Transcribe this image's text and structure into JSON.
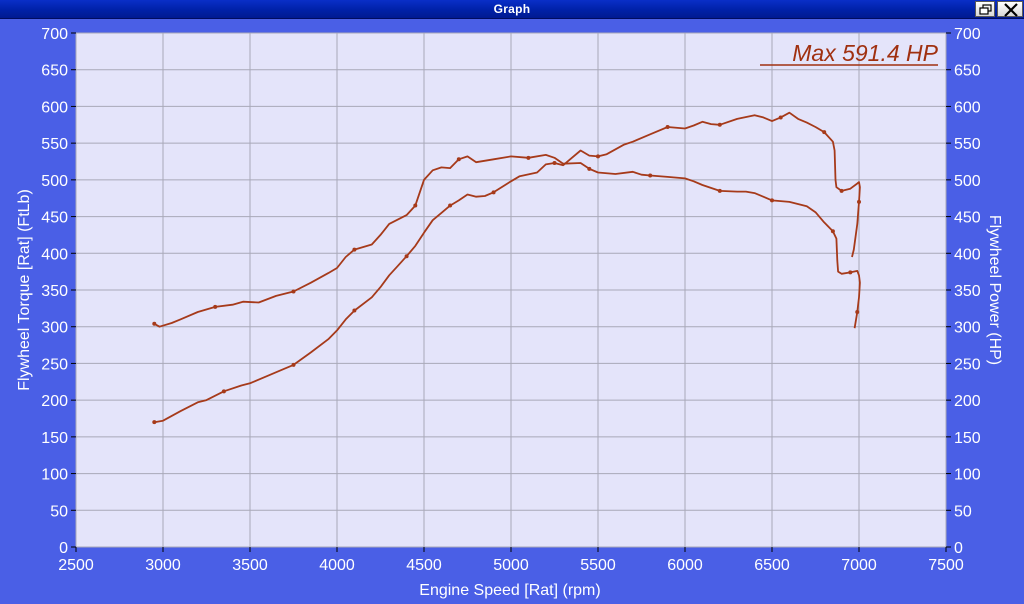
{
  "window": {
    "title": "Graph",
    "restore_icon": "restore-window-icon",
    "close_icon": "close-x-icon"
  },
  "chart_data": {
    "type": "line",
    "xlabel": "Engine Speed [Rat] (rpm)",
    "ylabel_left": "Flywheel Torque [Rat] (FtLb)",
    "ylabel_right": "Flywheel Power (HP)",
    "xlim": [
      2500,
      7500
    ],
    "ylim": [
      0,
      700
    ],
    "y2lim": [
      0,
      700
    ],
    "x_ticks": [
      2500,
      3000,
      3500,
      4000,
      4500,
      5000,
      5500,
      6000,
      6500,
      7000,
      7500
    ],
    "y_ticks": [
      0,
      50,
      100,
      150,
      200,
      250,
      300,
      350,
      400,
      450,
      500,
      550,
      600,
      650,
      700
    ],
    "grid": true,
    "annotation": "Max 591.4 HP",
    "colors": {
      "plot_bg": "#e4e4fa",
      "grid": "#a8a8b8",
      "line": "#a63a1a",
      "frame_bg": "#4a5fe6"
    },
    "series": [
      {
        "points": [
          [
            2950,
            304
          ],
          [
            2980,
            300
          ],
          [
            3050,
            305
          ],
          [
            3100,
            310
          ],
          [
            3200,
            320
          ],
          [
            3300,
            327
          ],
          [
            3400,
            330
          ],
          [
            3460,
            334
          ],
          [
            3550,
            333
          ],
          [
            3650,
            342
          ],
          [
            3750,
            348
          ],
          [
            3850,
            360
          ],
          [
            3950,
            373
          ],
          [
            4000,
            380
          ],
          [
            4050,
            395
          ],
          [
            4100,
            405
          ],
          [
            4200,
            412
          ],
          [
            4250,
            425
          ],
          [
            4300,
            440
          ],
          [
            4400,
            452
          ],
          [
            4450,
            465
          ],
          [
            4500,
            500
          ],
          [
            4550,
            513
          ],
          [
            4600,
            517
          ],
          [
            4650,
            516
          ],
          [
            4700,
            528
          ],
          [
            4750,
            532
          ],
          [
            4800,
            524
          ],
          [
            4900,
            528
          ],
          [
            5000,
            532
          ],
          [
            5100,
            530
          ],
          [
            5200,
            534
          ],
          [
            5250,
            530
          ],
          [
            5300,
            522
          ],
          [
            5400,
            523
          ],
          [
            5450,
            515
          ],
          [
            5500,
            510
          ],
          [
            5600,
            508
          ],
          [
            5700,
            511
          ],
          [
            5750,
            507
          ],
          [
            5800,
            506
          ],
          [
            5900,
            504
          ],
          [
            6000,
            502
          ],
          [
            6050,
            498
          ],
          [
            6100,
            493
          ],
          [
            6200,
            485
          ],
          [
            6300,
            484
          ],
          [
            6350,
            484
          ],
          [
            6400,
            482
          ],
          [
            6450,
            477
          ],
          [
            6500,
            472
          ],
          [
            6600,
            470
          ],
          [
            6700,
            464
          ],
          [
            6750,
            456
          ],
          [
            6800,
            442
          ],
          [
            6850,
            430
          ],
          [
            6870,
            420
          ],
          [
            6875,
            390
          ],
          [
            6880,
            375
          ],
          [
            6900,
            372
          ],
          [
            6950,
            374
          ],
          [
            6990,
            376
          ],
          [
            7000,
            370
          ],
          [
            7005,
            360
          ],
          [
            7000,
            340
          ],
          [
            6990,
            320
          ],
          [
            6975,
            298
          ]
        ]
      },
      {
        "points": [
          [
            2950,
            170
          ],
          [
            3000,
            172
          ],
          [
            3100,
            185
          ],
          [
            3200,
            197
          ],
          [
            3250,
            200
          ],
          [
            3350,
            212
          ],
          [
            3450,
            220
          ],
          [
            3500,
            223
          ],
          [
            3600,
            233
          ],
          [
            3700,
            243
          ],
          [
            3750,
            248
          ],
          [
            3850,
            265
          ],
          [
            3950,
            283
          ],
          [
            4000,
            295
          ],
          [
            4050,
            310
          ],
          [
            4100,
            322
          ],
          [
            4200,
            340
          ],
          [
            4250,
            354
          ],
          [
            4300,
            370
          ],
          [
            4350,
            383
          ],
          [
            4400,
            396
          ],
          [
            4450,
            410
          ],
          [
            4500,
            428
          ],
          [
            4550,
            445
          ],
          [
            4600,
            455
          ],
          [
            4650,
            465
          ],
          [
            4700,
            472
          ],
          [
            4750,
            480
          ],
          [
            4800,
            477
          ],
          [
            4850,
            478
          ],
          [
            4900,
            483
          ],
          [
            5000,
            498
          ],
          [
            5050,
            505
          ],
          [
            5150,
            510
          ],
          [
            5200,
            521
          ],
          [
            5250,
            523
          ],
          [
            5300,
            520
          ],
          [
            5350,
            530
          ],
          [
            5400,
            540
          ],
          [
            5450,
            533
          ],
          [
            5500,
            532
          ],
          [
            5550,
            535
          ],
          [
            5650,
            548
          ],
          [
            5700,
            552
          ],
          [
            5800,
            562
          ],
          [
            5900,
            572
          ],
          [
            6000,
            570
          ],
          [
            6050,
            574
          ],
          [
            6100,
            579
          ],
          [
            6150,
            576
          ],
          [
            6200,
            575
          ],
          [
            6300,
            583
          ],
          [
            6400,
            588
          ],
          [
            6450,
            585
          ],
          [
            6500,
            580
          ],
          [
            6550,
            585
          ],
          [
            6600,
            591.4
          ],
          [
            6650,
            583
          ],
          [
            6700,
            578
          ],
          [
            6750,
            572
          ],
          [
            6800,
            565
          ],
          [
            6850,
            552
          ],
          [
            6860,
            540
          ],
          [
            6865,
            500
          ],
          [
            6870,
            490
          ],
          [
            6900,
            485
          ],
          [
            6950,
            488
          ],
          [
            6990,
            495
          ],
          [
            7000,
            497
          ],
          [
            7005,
            490
          ],
          [
            7000,
            470
          ],
          [
            6990,
            440
          ],
          [
            6970,
            405
          ],
          [
            6960,
            395
          ]
        ]
      }
    ]
  }
}
